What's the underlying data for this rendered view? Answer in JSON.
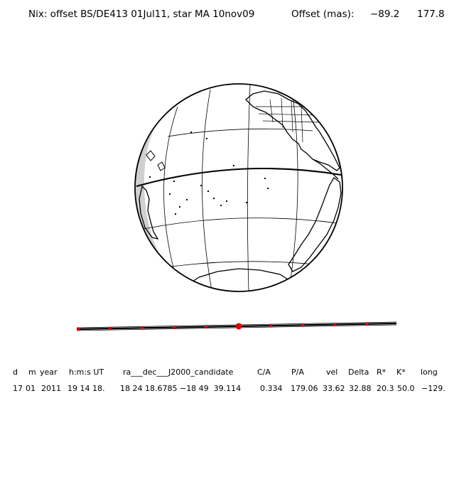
{
  "header": {
    "title": "Nix: offset BS/DE413 01Jul11, star MA 10nov09",
    "offset_label": "Offset (mas):",
    "offset_x": "−89.2",
    "offset_y": "177.8"
  },
  "table": {
    "headers": [
      "d",
      "m",
      "year",
      "h:m:s UT",
      "ra___dec___J2000_candidate",
      "C/A",
      "P/A",
      "vel",
      "Delta",
      "R*",
      "K*",
      "long"
    ],
    "values": [
      "17",
      "01",
      "2011",
      "19 14 18.",
      "18 24 18.6785 −18 49  39.114",
      "0.334",
      "179.06",
      "33.62",
      "32.88",
      "20.3",
      "50.0",
      "−129."
    ]
  },
  "colors": {
    "ink": "#000000",
    "marker": "#e00000",
    "shade": "#d0d0d0"
  }
}
